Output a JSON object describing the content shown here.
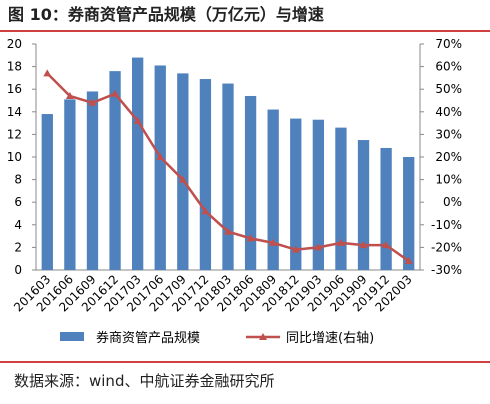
{
  "chart_data": {
    "type": "bar-line",
    "title": "图 10：券商资管产品规模（万亿元）与增速",
    "source": "数据来源：wind、中航证券金融研究所",
    "categories": [
      "201603",
      "201606",
      "201609",
      "201612",
      "201703",
      "201706",
      "201709",
      "201712",
      "201803",
      "201806",
      "201809",
      "201812",
      "201903",
      "201906",
      "201909",
      "201912",
      "202003"
    ],
    "series": [
      {
        "name": "券商资管产品规模",
        "type": "bar",
        "color": "#4f81bd",
        "values": [
          13.8,
          15.1,
          15.8,
          17.6,
          18.8,
          18.1,
          17.4,
          16.9,
          16.5,
          15.4,
          14.2,
          13.4,
          13.3,
          12.6,
          11.5,
          10.8,
          10.0
        ]
      },
      {
        "name": "同比增速(右轴)",
        "type": "line",
        "axis": "y2",
        "color": "#c0504d",
        "values": [
          57,
          47,
          44,
          48,
          36,
          20,
          10,
          -4,
          -13,
          -16,
          -18,
          -21,
          -20,
          -18,
          -19,
          -19,
          -26
        ]
      }
    ],
    "ylim": [
      0,
      20
    ],
    "yticks": [
      0,
      2,
      4,
      6,
      8,
      10,
      12,
      14,
      16,
      18,
      20
    ],
    "y2lim": [
      -30,
      70
    ],
    "y2ticks": [
      {
        "value": -30,
        "label": "-30%"
      },
      {
        "value": -20,
        "label": "-20%"
      },
      {
        "value": -10,
        "label": "-10%"
      },
      {
        "value": 0,
        "label": "0%"
      },
      {
        "value": 10,
        "label": "10%"
      },
      {
        "value": 20,
        "label": "20%"
      },
      {
        "value": 30,
        "label": "30%"
      },
      {
        "value": 40,
        "label": "40%"
      },
      {
        "value": 50,
        "label": "50%"
      },
      {
        "value": 60,
        "label": "60%"
      },
      {
        "value": 70,
        "label": "70%"
      }
    ],
    "legend": "bottom"
  }
}
